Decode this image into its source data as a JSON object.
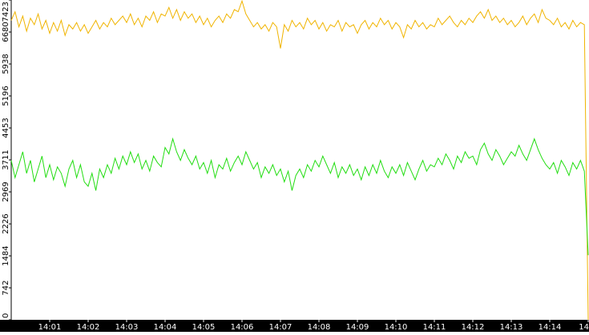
{
  "chart_data": {
    "type": "line",
    "xlim": [
      0,
      150
    ],
    "xticks": [
      {
        "value": 10,
        "label": "14:01"
      },
      {
        "value": 20,
        "label": "14:02"
      },
      {
        "value": 30,
        "label": "14:03"
      },
      {
        "value": 40,
        "label": "14:04"
      },
      {
        "value": 50,
        "label": "14:05"
      },
      {
        "value": 60,
        "label": "14:06"
      },
      {
        "value": 70,
        "label": "14:07"
      },
      {
        "value": 80,
        "label": "14:08"
      },
      {
        "value": 90,
        "label": "14:09"
      },
      {
        "value": 100,
        "label": "14:10"
      },
      {
        "value": 110,
        "label": "14:11"
      },
      {
        "value": 120,
        "label": "14:12"
      },
      {
        "value": 130,
        "label": "14:13"
      },
      {
        "value": 140,
        "label": "14:14"
      },
      {
        "value": 150,
        "label": "14"
      }
    ],
    "ylim": [
      0,
      7423
    ],
    "yticks": [
      0,
      742,
      1484,
      2226,
      2969,
      3711,
      4453,
      5196,
      5938,
      6680,
      7423
    ],
    "grid": false,
    "series": [
      {
        "color": "#f0b400",
        "values": [
          6950,
          7150,
          6800,
          7050,
          6700,
          7000,
          6850,
          7100,
          6750,
          6950,
          6650,
          6900,
          6700,
          6950,
          6600,
          6850,
          6750,
          6900,
          6700,
          6850,
          6650,
          6800,
          6950,
          6750,
          6900,
          6800,
          7000,
          6850,
          6950,
          7050,
          6900,
          7100,
          6850,
          7000,
          6800,
          7050,
          6950,
          7150,
          6900,
          7100,
          7050,
          7250,
          7000,
          7200,
          6950,
          7150,
          7000,
          7100,
          6900,
          7050,
          6850,
          7000,
          6800,
          6950,
          7050,
          6900,
          7100,
          7000,
          7200,
          7150,
          7400,
          7100,
          6950,
          6800,
          6900,
          6750,
          6850,
          6700,
          6900,
          6800,
          6300,
          6850,
          6700,
          6950,
          6800,
          6900,
          6750,
          7000,
          6850,
          6950,
          6750,
          6900,
          6700,
          6850,
          6800,
          6950,
          6700,
          6900,
          6800,
          6850,
          6650,
          6850,
          6950,
          6750,
          6900,
          6800,
          7000,
          6850,
          6950,
          6750,
          6900,
          6800,
          6550,
          6850,
          6750,
          6950,
          6800,
          6900,
          6750,
          6850,
          6800,
          7000,
          6850,
          6950,
          7050,
          6900,
          6800,
          6950,
          6850,
          7000,
          6900,
          7050,
          7150,
          7000,
          7200,
          6950,
          7050,
          6900,
          7000,
          6850,
          6950,
          6800,
          6900,
          7050,
          6850,
          7000,
          7100,
          6900,
          7200,
          7000,
          6950,
          6850,
          7000,
          6800,
          6900,
          6750,
          6950,
          6800,
          6900,
          6850,
          0
        ]
      },
      {
        "color": "#22dd11",
        "values": [
          3700,
          3300,
          3600,
          3900,
          3400,
          3700,
          3200,
          3500,
          3800,
          3300,
          3600,
          3250,
          3550,
          3400,
          3100,
          3500,
          3700,
          3300,
          3600,
          3200,
          3100,
          3400,
          3000,
          3500,
          3300,
          3600,
          3400,
          3750,
          3500,
          3800,
          3600,
          3900,
          3650,
          3850,
          3500,
          3700,
          3450,
          3800,
          3650,
          3550,
          4000,
          3850,
          4200,
          3900,
          3700,
          3950,
          3750,
          3600,
          3800,
          3500,
          3650,
          3400,
          3700,
          3300,
          3600,
          3500,
          3750,
          3450,
          3650,
          3800,
          3600,
          3900,
          3700,
          3500,
          3650,
          3300,
          3550,
          3400,
          3600,
          3350,
          3500,
          3200,
          3450,
          3000,
          3350,
          3500,
          3300,
          3600,
          3450,
          3700,
          3550,
          3800,
          3600,
          3400,
          3650,
          3300,
          3550,
          3400,
          3600,
          3350,
          3500,
          3250,
          3550,
          3350,
          3600,
          3400,
          3700,
          3450,
          3300,
          3550,
          3400,
          3600,
          3350,
          3650,
          3450,
          3250,
          3500,
          3700,
          3450,
          3600,
          3550,
          3750,
          3600,
          3850,
          3700,
          3500,
          3800,
          3650,
          3900,
          3750,
          3800,
          3600,
          3950,
          4100,
          3850,
          3700,
          3950,
          3800,
          3600,
          3750,
          3900,
          3800,
          4050,
          3850,
          3700,
          3950,
          4200,
          3950,
          3750,
          3600,
          3500,
          3650,
          3400,
          3700,
          3550,
          3350,
          3650,
          3500,
          3700,
          3450,
          1500
        ]
      }
    ]
  }
}
